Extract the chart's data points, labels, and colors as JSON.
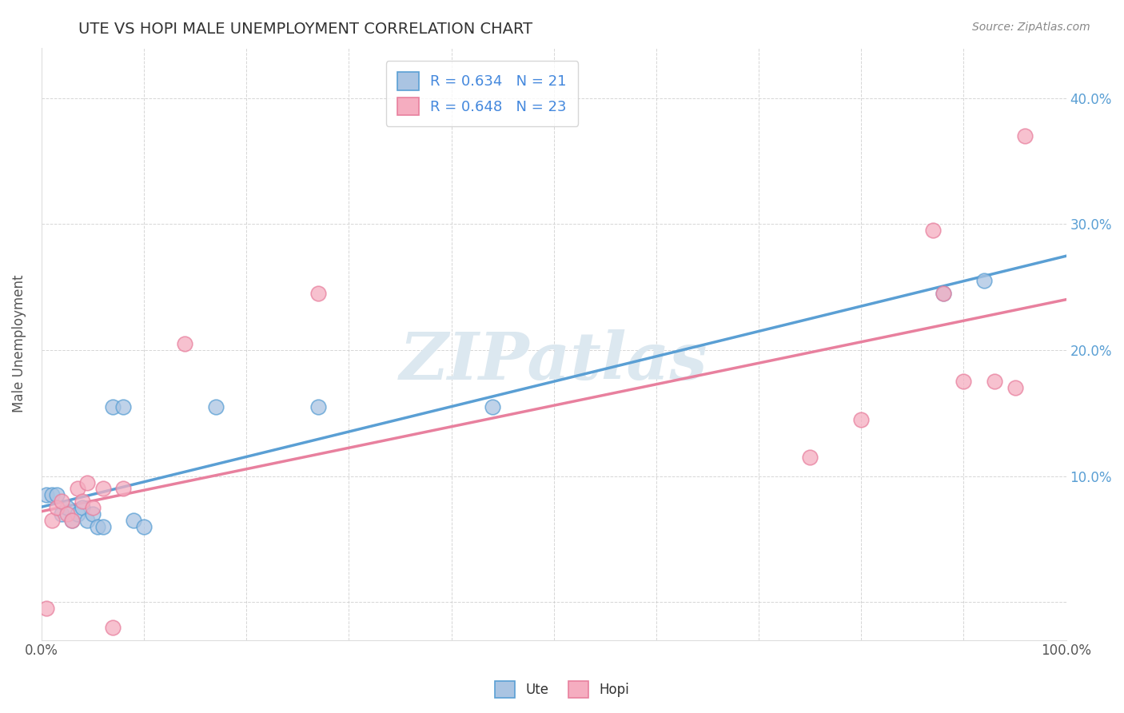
{
  "title": "UTE VS HOPI MALE UNEMPLOYMENT CORRELATION CHART",
  "source": "Source: ZipAtlas.com",
  "ylabel": "Male Unemployment",
  "xlim": [
    0,
    1.0
  ],
  "ylim": [
    -0.03,
    0.44
  ],
  "xticks": [
    0.0,
    0.1,
    0.2,
    0.3,
    0.4,
    0.5,
    0.6,
    0.7,
    0.8,
    0.9,
    1.0
  ],
  "xtick_labels": [
    "0.0%",
    "",
    "",
    "",
    "",
    "",
    "",
    "",
    "",
    "",
    "100.0%"
  ],
  "yticks": [
    0.0,
    0.1,
    0.2,
    0.3,
    0.4
  ],
  "ytick_labels_right": [
    "",
    "10.0%",
    "20.0%",
    "30.0%",
    "40.0%"
  ],
  "ute_R": 0.634,
  "ute_N": 21,
  "hopi_R": 0.648,
  "hopi_N": 23,
  "ute_color": "#aac4e2",
  "hopi_color": "#f5adc0",
  "ute_line_color": "#5a9fd4",
  "hopi_line_color": "#e8809e",
  "legend_text_color": "#4488dd",
  "ute_x": [
    0.005,
    0.01,
    0.015,
    0.02,
    0.025,
    0.03,
    0.035,
    0.04,
    0.045,
    0.05,
    0.055,
    0.06,
    0.07,
    0.08,
    0.09,
    0.1,
    0.17,
    0.27,
    0.44,
    0.88,
    0.92
  ],
  "ute_y": [
    0.085,
    0.085,
    0.085,
    0.07,
    0.075,
    0.065,
    0.07,
    0.075,
    0.065,
    0.07,
    0.06,
    0.06,
    0.155,
    0.155,
    0.065,
    0.06,
    0.155,
    0.155,
    0.155,
    0.245,
    0.255
  ],
  "hopi_x": [
    0.005,
    0.01,
    0.015,
    0.02,
    0.025,
    0.03,
    0.035,
    0.04,
    0.045,
    0.05,
    0.06,
    0.07,
    0.08,
    0.14,
    0.27,
    0.75,
    0.8,
    0.87,
    0.88,
    0.9,
    0.93,
    0.95,
    0.96
  ],
  "hopi_y": [
    -0.005,
    0.065,
    0.075,
    0.08,
    0.07,
    0.065,
    0.09,
    0.08,
    0.095,
    0.075,
    0.09,
    -0.02,
    0.09,
    0.205,
    0.245,
    0.115,
    0.145,
    0.295,
    0.245,
    0.175,
    0.175,
    0.17,
    0.37
  ],
  "background_color": "#ffffff",
  "grid_color": "#cccccc",
  "watermark": "ZIPatlas",
  "watermark_color": "#dce8f0"
}
